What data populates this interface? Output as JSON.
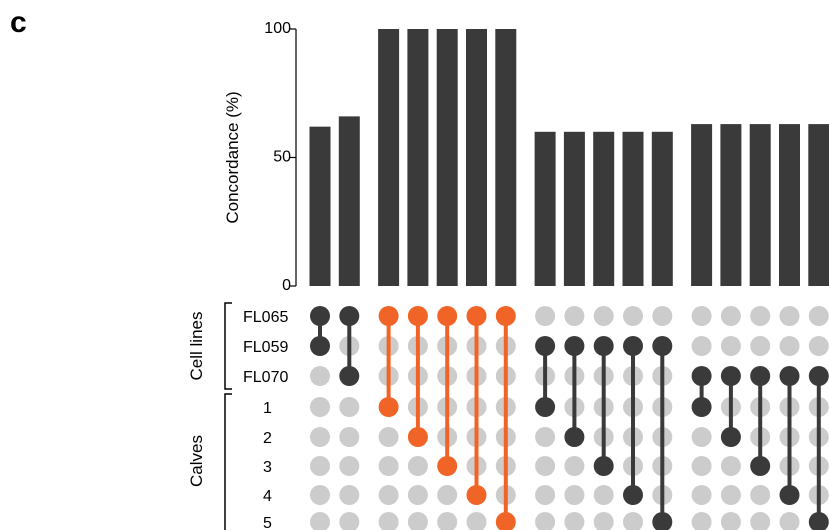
{
  "panel_label": "c",
  "colors": {
    "bar": "#3a3a3a",
    "dot_active_dark": "#3a3a3a",
    "dot_active_highlight": "#f06427",
    "dot_inactive": "#cccccc"
  },
  "chart_data": {
    "type": "bar",
    "ylabel": "Concordance (%)",
    "ylim": [
      0,
      100
    ],
    "yticks": [
      "0",
      "50",
      "100"
    ],
    "values": [
      62,
      66,
      100,
      100,
      100,
      100,
      100,
      60,
      60,
      60,
      60,
      60,
      63,
      63,
      63,
      63,
      63
    ],
    "highlighted": [
      false,
      false,
      true,
      true,
      true,
      true,
      true,
      false,
      false,
      false,
      false,
      false,
      false,
      false,
      false,
      false,
      false
    ],
    "groups": [
      {
        "label": "Cell lines",
        "rows": [
          "FL065",
          "FL059",
          "FL070"
        ]
      },
      {
        "label": "Calves",
        "rows": [
          "1",
          "2",
          "3",
          "4",
          "5"
        ]
      }
    ],
    "memberships": [
      [
        "FL065",
        "FL059"
      ],
      [
        "FL065",
        "FL070"
      ],
      [
        "FL065",
        "1"
      ],
      [
        "FL065",
        "2"
      ],
      [
        "FL065",
        "3"
      ],
      [
        "FL065",
        "4"
      ],
      [
        "FL065",
        "5"
      ],
      [
        "FL059",
        "1"
      ],
      [
        "FL059",
        "2"
      ],
      [
        "FL059",
        "3"
      ],
      [
        "FL059",
        "4"
      ],
      [
        "FL059",
        "5"
      ],
      [
        "FL070",
        "1"
      ],
      [
        "FL070",
        "2"
      ],
      [
        "FL070",
        "3"
      ],
      [
        "FL070",
        "4"
      ],
      [
        "FL070",
        "5"
      ]
    ]
  }
}
